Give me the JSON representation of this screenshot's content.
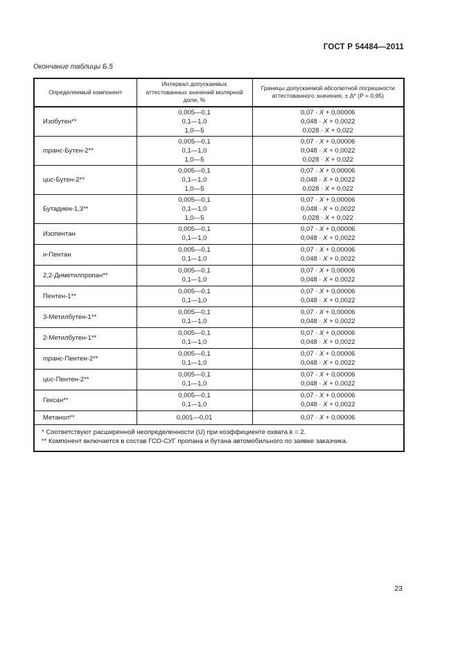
{
  "page": {
    "doc_code": "ГОСТ Р 54484—2011",
    "table_caption": "Окончание таблицы Б.5",
    "page_number": "23"
  },
  "table": {
    "headers": {
      "component": "Определяемый компонент",
      "interval": "Интервал допускаемых аттестованных значений молярной доли, %",
      "error": "Границы допускаемой абсолютной погрешности аттестованного значения, ± Δ* (P = 0,95)"
    },
    "rows": [
      {
        "name_italic": "",
        "name": "Изобутен**",
        "intervals": [
          "0,005—0,1",
          "0,1—1,0",
          "1,0—5"
        ],
        "errors": [
          "0,07 · X + 0,00006",
          "0,048 · X + 0,0022",
          "0,028 · X + 0,022"
        ]
      },
      {
        "name_italic": "транс",
        "name": "-Бутен-2**",
        "intervals": [
          "0,005—0,1",
          "0,1—1,0",
          "1,0—5"
        ],
        "errors": [
          "0,07 · X + 0,00006",
          "0,048 · X + 0,0022",
          "0,028 · X + 0,022"
        ]
      },
      {
        "name_italic": "цис",
        "name": "-Бутен-2**",
        "intervals": [
          "0,005—0,1",
          "0,1—1,0",
          "1,0—5"
        ],
        "errors": [
          "0,07 · X + 0,00006",
          "0,048 · X + 0,0022",
          "0,028 · X + 0,022"
        ]
      },
      {
        "name_italic": "",
        "name": "Бутадиен-1,3**",
        "intervals": [
          "0,005—0,1",
          "0,1—1,0",
          "1,0—5"
        ],
        "errors": [
          "0,07 · X + 0,00006",
          "0,048 · X + 0,0022",
          "0,028 · X + 0,022"
        ]
      },
      {
        "name_italic": "",
        "name": "Изопентан",
        "intervals": [
          "0,005—0,1",
          "0,1—1,0"
        ],
        "errors": [
          "0,07 · X + 0,00006",
          "0,048 · X + 0,0022"
        ]
      },
      {
        "name_italic": "н",
        "name": "-Пентан",
        "intervals": [
          "0,005—0,1",
          "0,1—1,0"
        ],
        "errors": [
          "0,07 · X + 0,00006",
          "0,048 · X + 0,0022"
        ]
      },
      {
        "name_italic": "",
        "name": "2,2-Диметилпропан**",
        "intervals": [
          "0,005—0,1",
          "0,1—1,0"
        ],
        "errors": [
          "0,07 · X + 0,00006",
          "0,048 · X + 0,0022"
        ]
      },
      {
        "name_italic": "",
        "name": "Пентен-1**",
        "intervals": [
          "0,005—0,1",
          "0,1—1,0"
        ],
        "errors": [
          "0,07 · X + 0,00006",
          "0,048 · X + 0,0022"
        ]
      },
      {
        "name_italic": "",
        "name": "3-Метилбутен-1**",
        "intervals": [
          "0,005—0,1",
          "0,1—1,0"
        ],
        "errors": [
          "0,07 · X + 0,00006",
          "0,048 · X + 0,0022"
        ]
      },
      {
        "name_italic": "",
        "name": "2-Метилбутен-1**",
        "intervals": [
          "0,005—0,1",
          "0,1—1,0"
        ],
        "errors": [
          "0,07 · X + 0,00006",
          "0,048 · X + 0,0022"
        ]
      },
      {
        "name_italic": "транс",
        "name": "-Пентен-2**",
        "intervals": [
          "0,005—0,1",
          "0,1—1,0"
        ],
        "errors": [
          "0,07 · X + 0,00006",
          "0,048 · X + 0,0022"
        ]
      },
      {
        "name_italic": "цис",
        "name": "-Пентен-2**",
        "intervals": [
          "0,005—0,1",
          "0,1—1,0"
        ],
        "errors": [
          "0,07 · X + 0,00006",
          "0,048 · X + 0,0022"
        ]
      },
      {
        "name_italic": "",
        "name": "Гексан**",
        "intervals": [
          "0,005—0,1",
          "0,1—1,0"
        ],
        "errors": [
          "0,07 · X + 0,00006",
          "0,048 · X + 0,0022"
        ]
      },
      {
        "name_italic": "",
        "name": "Метанол**",
        "intervals": [
          "0,001—0,01"
        ],
        "errors": [
          "0,07 · X + 0,00006"
        ]
      }
    ],
    "footnotes": [
      "* Соответствуют расширенной неопределенности (U) при коэффициенте охвата k = 2.",
      "** Компонент включается в состав ГСО-СУГ пропана и бутана автомобильного по заявке заказчика."
    ]
  }
}
